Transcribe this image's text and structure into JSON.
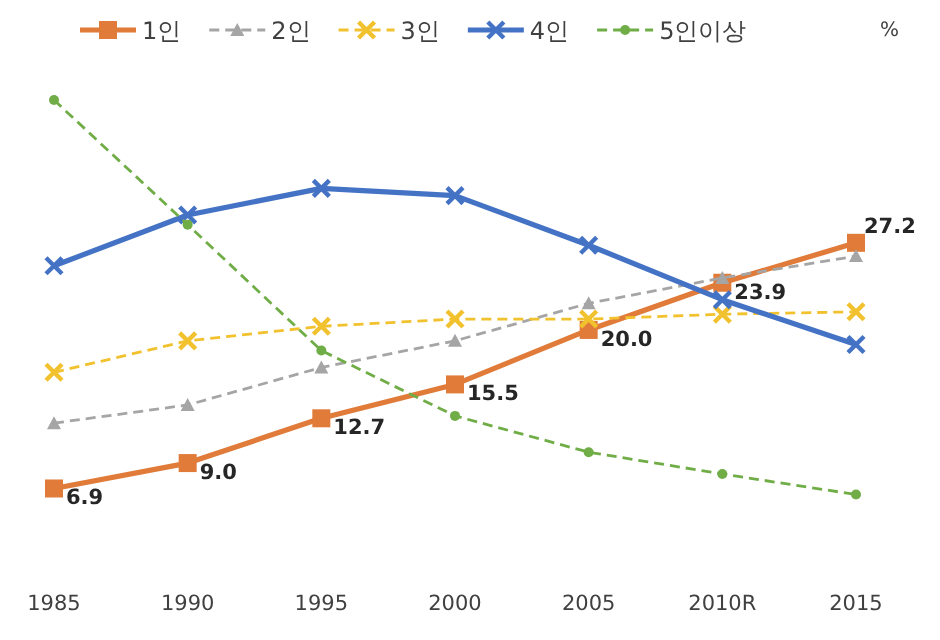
{
  "chart_data": {
    "type": "line",
    "ylabel": "%",
    "categories": [
      "1985",
      "1990",
      "1995",
      "2000",
      "2005",
      "2010R",
      "2015"
    ],
    "legend": "top",
    "tick_labels": "x",
    "series": [
      {
        "name": "1인",
        "color": "#e07b39",
        "marker": "square",
        "line_style": "solid",
        "values": [
          6.9,
          9.0,
          12.7,
          15.5,
          20.0,
          23.9,
          27.2
        ],
        "value_labels": [
          "6.9",
          "9.0",
          "12.7",
          "15.5",
          "20.0",
          "23.9",
          "27.2"
        ]
      },
      {
        "name": "2인",
        "color": "#a5a5a5",
        "marker": "triangle",
        "line_style": "dashed",
        "values": [
          12.3,
          13.8,
          16.9,
          19.1,
          22.2,
          24.3,
          26.1
        ]
      },
      {
        "name": "3인",
        "color": "#f2c12e",
        "marker": "cross",
        "line_style": "dashed",
        "values": [
          16.5,
          19.1,
          20.3,
          20.9,
          20.9,
          21.3,
          21.5
        ]
      },
      {
        "name": "4인",
        "color": "#4472c4",
        "marker": "cross",
        "line_style": "solid",
        "values": [
          25.3,
          29.5,
          31.7,
          31.1,
          27.0,
          22.5,
          18.8
        ]
      },
      {
        "name": "5인이상",
        "color": "#70ad47",
        "marker": "circle",
        "line_style": "dashed",
        "values": [
          39.0,
          28.7,
          18.3,
          12.9,
          9.9,
          8.1,
          6.4
        ]
      }
    ]
  }
}
